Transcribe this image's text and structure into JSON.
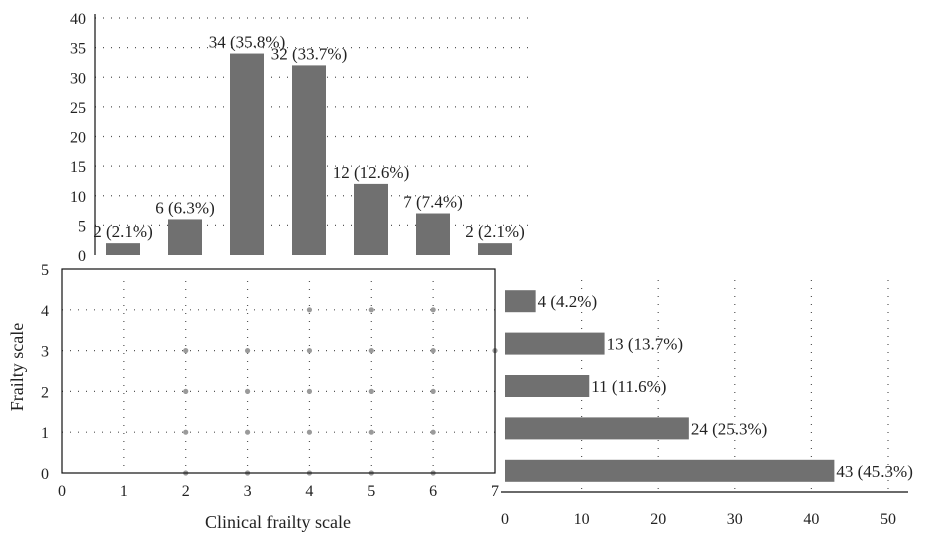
{
  "chart_data": [
    {
      "type": "bar",
      "panel": "top-histogram",
      "categories": [
        "1",
        "2",
        "3",
        "4",
        "5",
        "6",
        "7"
      ],
      "values": [
        2,
        6,
        34,
        32,
        12,
        7,
        2
      ],
      "data_labels": [
        "2 (2.1%)",
        "6 (6.3%)",
        "34 (35.8%)",
        "32 (33.7%)",
        "12 (12.6%)",
        "7 (7.4%)",
        "2 (2.1%)"
      ],
      "ylim": [
        0,
        40
      ],
      "y_ticks": [
        "0",
        "5",
        "10",
        "15",
        "20",
        "25",
        "30",
        "35",
        "40"
      ],
      "grid": true
    },
    {
      "type": "scatter",
      "panel": "main-scatter",
      "xlabel": "Clinical frailty scale",
      "ylabel": "Frailty scale",
      "xlim": [
        0,
        7
      ],
      "ylim": [
        0,
        5
      ],
      "x_ticks": [
        "0",
        "1",
        "2",
        "3",
        "4",
        "5",
        "6",
        "7"
      ],
      "y_ticks": [
        "0",
        "1",
        "2",
        "3",
        "4",
        "5"
      ],
      "points": [
        {
          "x": 2,
          "y": 0
        },
        {
          "x": 3,
          "y": 0
        },
        {
          "x": 4,
          "y": 0
        },
        {
          "x": 5,
          "y": 0
        },
        {
          "x": 6,
          "y": 0
        },
        {
          "x": 2,
          "y": 1
        },
        {
          "x": 3,
          "y": 1
        },
        {
          "x": 4,
          "y": 1
        },
        {
          "x": 5,
          "y": 1
        },
        {
          "x": 6,
          "y": 1
        },
        {
          "x": 2,
          "y": 2
        },
        {
          "x": 3,
          "y": 2
        },
        {
          "x": 4,
          "y": 2
        },
        {
          "x": 5,
          "y": 2
        },
        {
          "x": 6,
          "y": 2
        },
        {
          "x": 2,
          "y": 3
        },
        {
          "x": 3,
          "y": 3
        },
        {
          "x": 4,
          "y": 3
        },
        {
          "x": 5,
          "y": 3
        },
        {
          "x": 6,
          "y": 3
        },
        {
          "x": 7,
          "y": 3
        },
        {
          "x": 4,
          "y": 4
        },
        {
          "x": 5,
          "y": 4
        },
        {
          "x": 6,
          "y": 4
        }
      ],
      "grid": true
    },
    {
      "type": "bar",
      "orientation": "horizontal",
      "panel": "right-histogram",
      "categories": [
        "0",
        "1",
        "2",
        "3",
        "4"
      ],
      "values": [
        43,
        24,
        11,
        13,
        4
      ],
      "data_labels": [
        "43 (45.3%)",
        "24 (25.3%)",
        "11 (11.6%)",
        "13 (13.7%)",
        "4 (4.2%)"
      ],
      "xlim": [
        0,
        50
      ],
      "x_ticks": [
        "0",
        "10",
        "20",
        "30",
        "40",
        "50"
      ],
      "grid": true
    }
  ]
}
